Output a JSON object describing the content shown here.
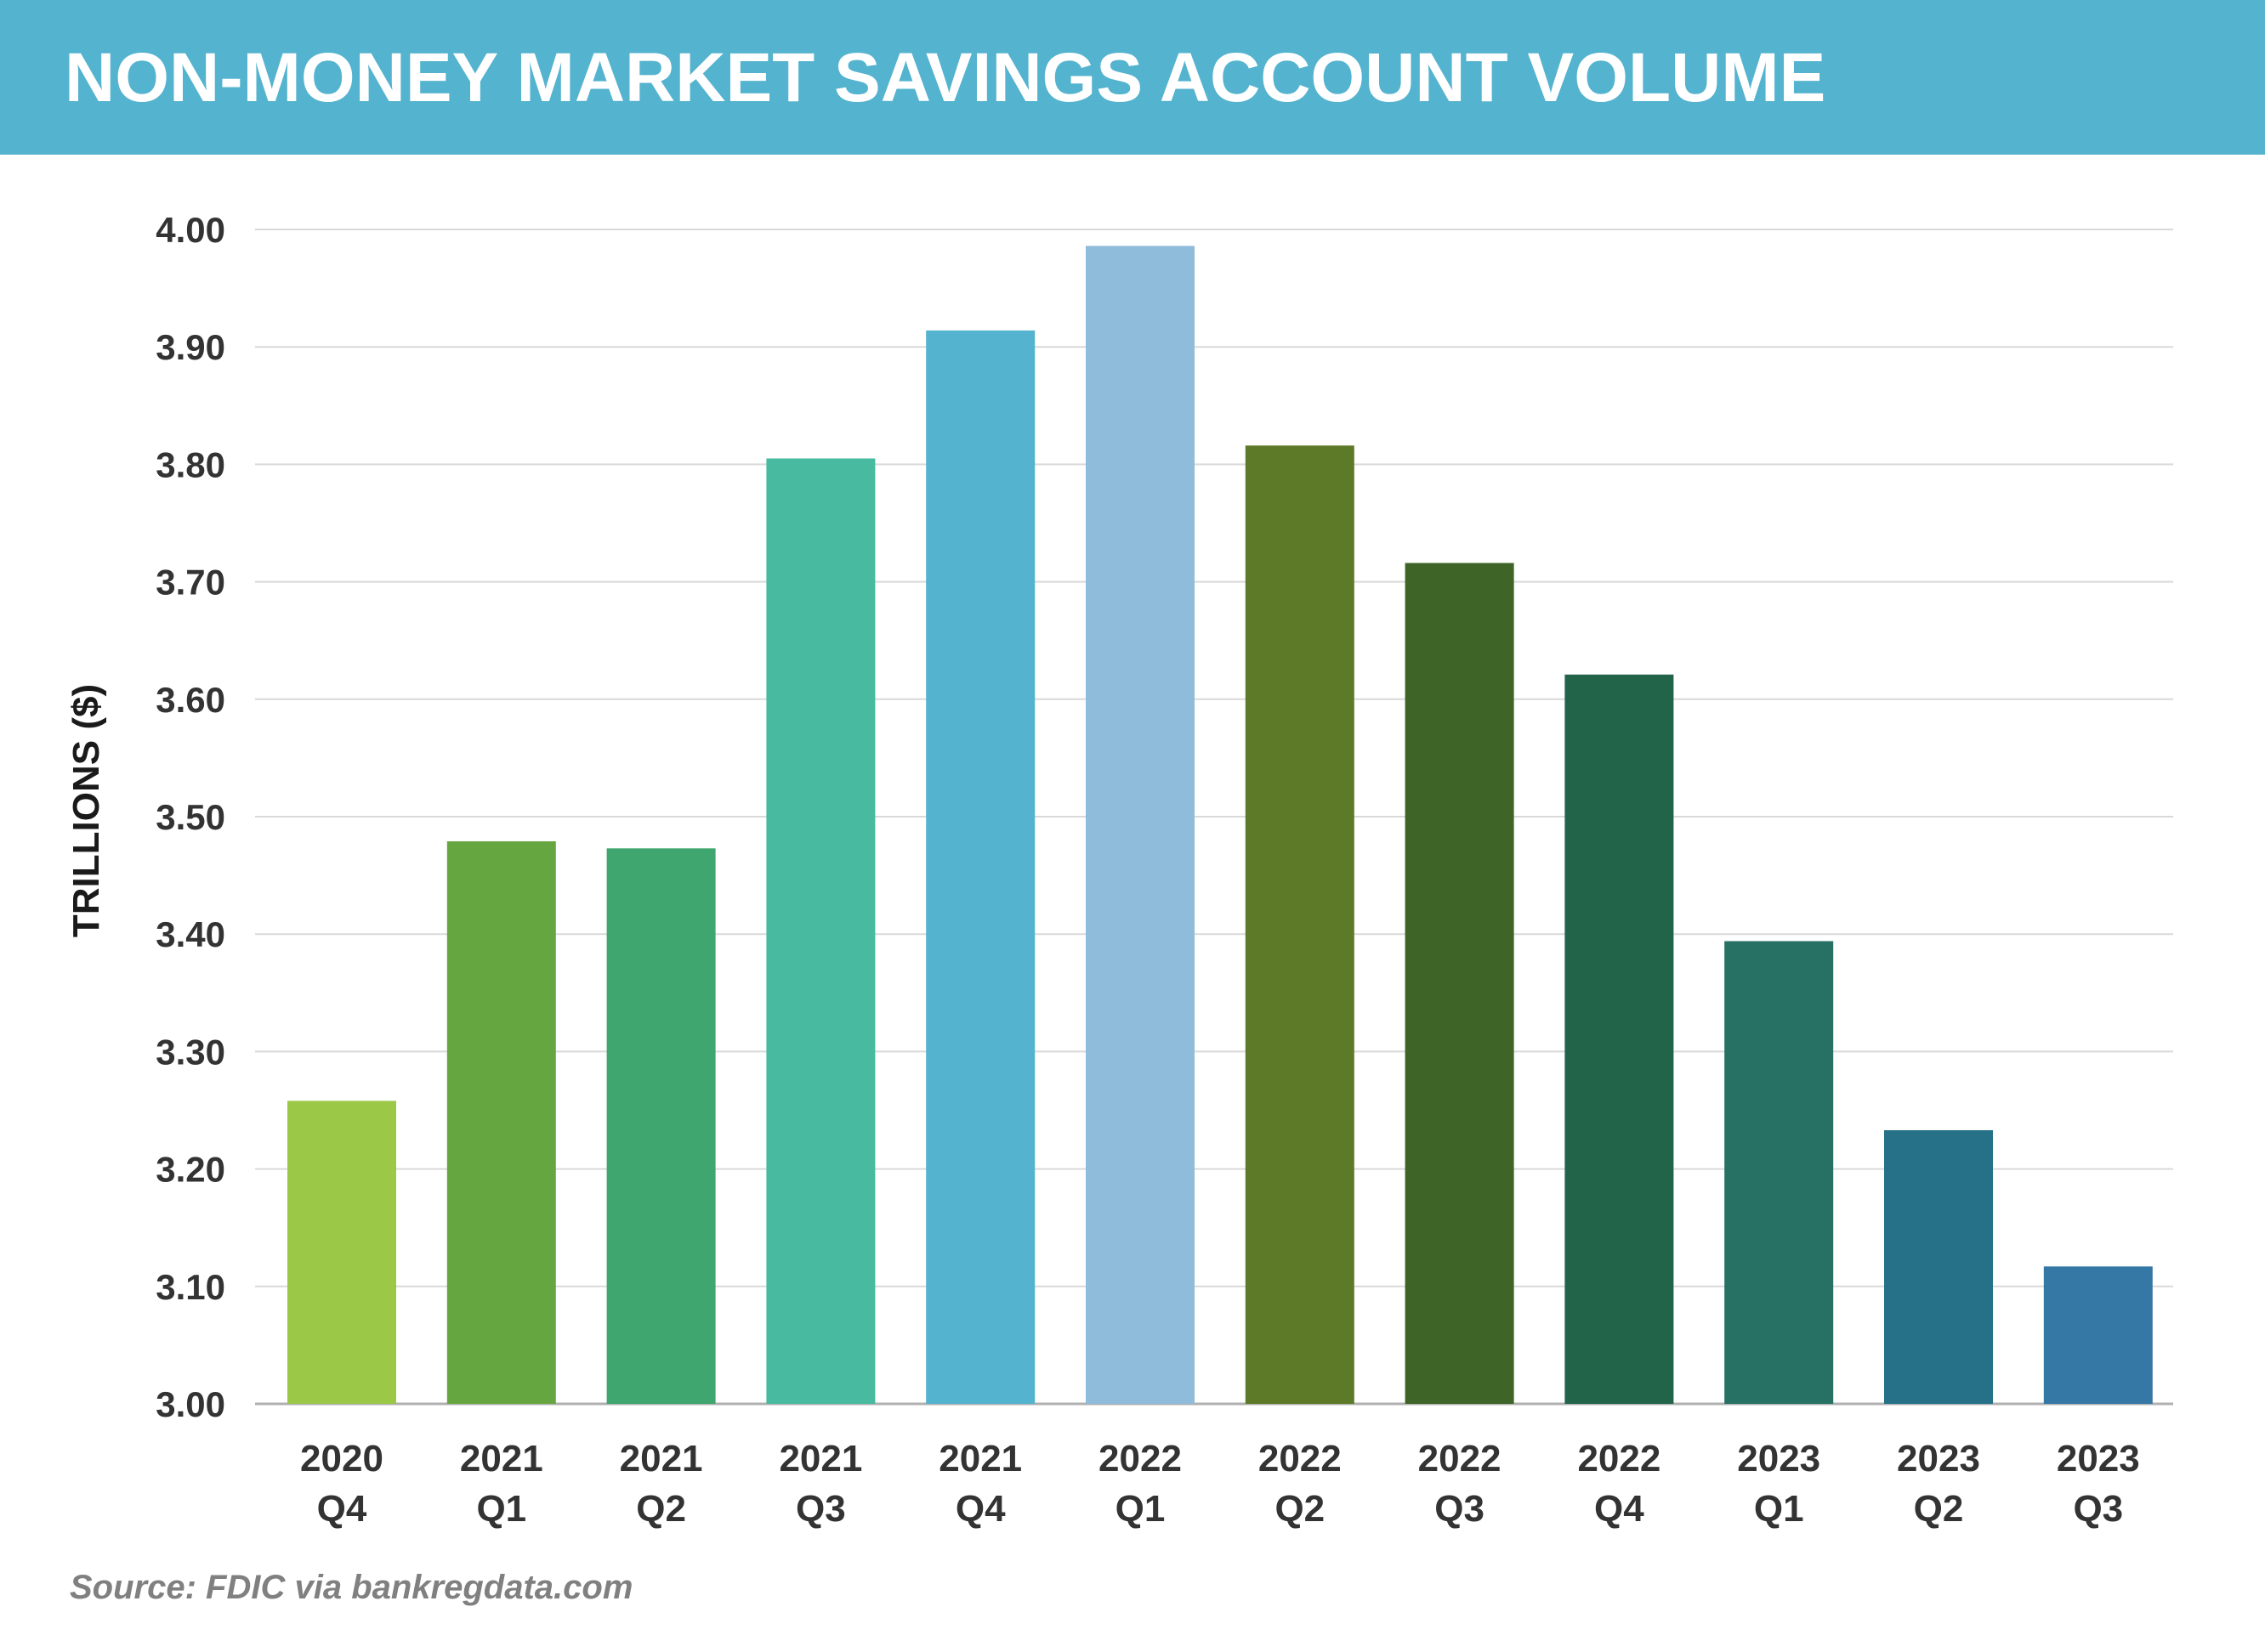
{
  "title": "NON-MONEY MARKET SAVINGS ACCOUNT VOLUME",
  "source": "Source: FDIC via bankregdata.com",
  "chart_data": {
    "type": "bar",
    "title": "NON-MONEY MARKET SAVINGS ACCOUNT VOLUME",
    "xlabel": "",
    "ylabel": "TRILLIONS ($)",
    "ylim": [
      3.0,
      4.0
    ],
    "yticks": [
      "3.00",
      "3.10",
      "3.20",
      "3.30",
      "3.40",
      "3.50",
      "3.60",
      "3.70",
      "3.80",
      "3.90",
      "4.00"
    ],
    "grid": true,
    "legend": "none",
    "categories": [
      [
        "2020",
        "Q4"
      ],
      [
        "2021",
        "Q1"
      ],
      [
        "2021",
        "Q2"
      ],
      [
        "2021",
        "Q3"
      ],
      [
        "2021",
        "Q4"
      ],
      [
        "2022",
        "Q1"
      ],
      [
        "2022",
        "Q2"
      ],
      [
        "2022",
        "Q3"
      ],
      [
        "2022",
        "Q4"
      ],
      [
        "2023",
        "Q1"
      ],
      [
        "2023",
        "Q2"
      ],
      [
        "2023",
        "Q3"
      ]
    ],
    "values": [
      3.258,
      3.479,
      3.473,
      3.805,
      3.914,
      3.986,
      3.816,
      3.716,
      3.621,
      3.394,
      3.233,
      3.117
    ],
    "colors": [
      "#9cc847",
      "#66a640",
      "#3ea66e",
      "#48baa0",
      "#54b3ce",
      "#8fbcdb",
      "#5c7a27",
      "#3e6428",
      "#22644a",
      "#267064",
      "#267088",
      "#3578a6"
    ]
  }
}
